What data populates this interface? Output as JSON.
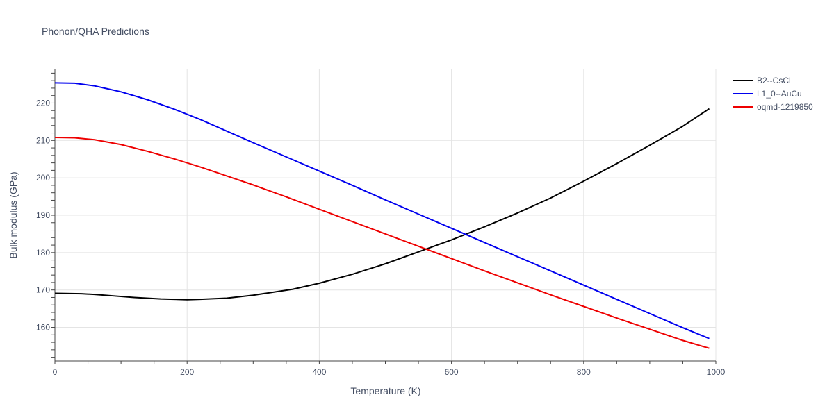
{
  "chart_data": {
    "type": "line",
    "title": "Phonon/QHA Predictions",
    "xlabel": "Temperature (K)",
    "ylabel": "Bulk modulus (GPa)",
    "xlim": [
      0,
      1000
    ],
    "ylim": [
      151,
      229
    ],
    "xticks": [
      0,
      200,
      400,
      600,
      800,
      1000
    ],
    "yticks": [
      160,
      170,
      180,
      190,
      200,
      210,
      220
    ],
    "grid": true,
    "legend_position": "top-right",
    "series": [
      {
        "name": "B2--CsCl",
        "color": "#000000",
        "x": [
          0,
          40,
          60,
          90,
          120,
          160,
          200,
          220,
          260,
          300,
          360,
          400,
          450,
          500,
          550,
          600,
          650,
          700,
          750,
          800,
          850,
          900,
          950,
          990
        ],
        "y": [
          169.1,
          169.0,
          168.8,
          168.4,
          168.0,
          167.6,
          167.4,
          167.5,
          167.8,
          168.6,
          170.2,
          171.8,
          174.2,
          177.0,
          180.2,
          183.4,
          186.9,
          190.6,
          194.6,
          199.1,
          203.8,
          208.7,
          213.8,
          218.5
        ]
      },
      {
        "name": "L1_0--AuCu",
        "color": "#0000ee",
        "x": [
          0,
          30,
          60,
          100,
          140,
          180,
          220,
          260,
          300,
          350,
          400,
          450,
          500,
          550,
          600,
          650,
          700,
          750,
          800,
          850,
          900,
          950,
          990
        ],
        "y": [
          225.4,
          225.3,
          224.6,
          223.0,
          220.9,
          218.4,
          215.6,
          212.5,
          209.4,
          205.6,
          201.8,
          198.0,
          194.1,
          190.3,
          186.5,
          182.7,
          178.9,
          175.1,
          171.3,
          167.5,
          163.7,
          159.9,
          157.0
        ]
      },
      {
        "name": "oqmd-1219850",
        "color": "#ee0000",
        "x": [
          0,
          30,
          60,
          100,
          140,
          180,
          220,
          260,
          300,
          350,
          400,
          450,
          500,
          550,
          600,
          650,
          700,
          750,
          800,
          850,
          900,
          950,
          990
        ],
        "y": [
          210.8,
          210.7,
          210.2,
          208.9,
          207.1,
          205.1,
          202.9,
          200.5,
          198.1,
          194.9,
          191.6,
          188.3,
          185.0,
          181.7,
          178.4,
          175.1,
          171.9,
          168.7,
          165.6,
          162.5,
          159.5,
          156.5,
          154.4
        ]
      }
    ]
  }
}
